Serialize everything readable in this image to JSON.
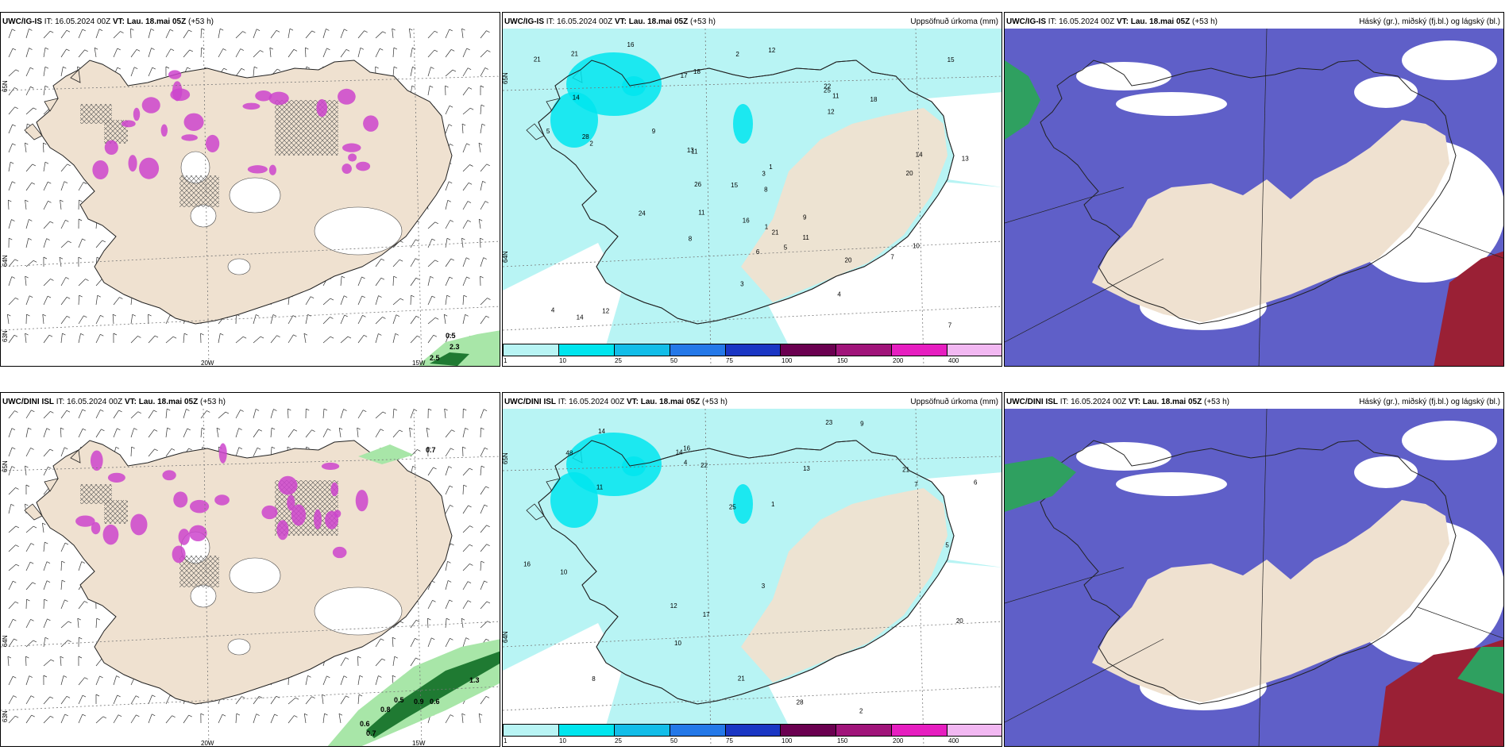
{
  "panels": [
    {
      "id": "igis-wind",
      "model": "UWC/IG-IS",
      "it_label": "IT: 16.05.2024 00Z",
      "vt_label": "VT: Lau. 18.mai 05Z",
      "lead": "(+53 h)",
      "right_title": "",
      "lat_labels": [
        "65N",
        "64N",
        "63N"
      ],
      "lon_labels": [
        "20W",
        "15W"
      ],
      "value_labels": [
        "0.5",
        "2.3",
        "2.5"
      ],
      "colors": {
        "land": "#efe1d0",
        "snow": "#ffffff",
        "precip": "#cc44cc",
        "rain_green": "#3cb043"
      }
    },
    {
      "id": "igis-precip",
      "model": "UWC/IG-IS",
      "it_label": "IT: 16.05.2024 00Z",
      "vt_label": "VT: Lau. 18.mai 05Z",
      "lead": "(+53 h)",
      "right_title": "Uppsöfnuð úrkoma (mm)",
      "lat_labels": [
        "65N",
        "64N"
      ],
      "value_labels": [
        "18",
        "15",
        "18",
        "16",
        "11",
        "21",
        "13",
        "11",
        "7",
        "16",
        "20",
        "14",
        "15",
        "5",
        "12",
        "21",
        "26",
        "4",
        "14",
        "28",
        "24",
        "12",
        "22",
        "20",
        "11",
        "9",
        "8",
        "11",
        "17",
        "5",
        "4",
        "12",
        "25",
        "14",
        "21",
        "13",
        "2",
        "3",
        "7",
        "6",
        "9",
        "8",
        "1",
        "10",
        "2",
        "1",
        "3"
      ],
      "legend_colors": [
        "#b8f4f4",
        "#00e5ee",
        "#12bde8",
        "#2478e8",
        "#1a36c4",
        "#6a0050",
        "#a0147a",
        "#e61ec0",
        "#f2b8f2"
      ],
      "legend_labels": [
        "1",
        "10",
        "25",
        "50",
        "75",
        "100",
        "150",
        "200",
        "400"
      ]
    },
    {
      "id": "igis-cloud",
      "model": "UWC/IG-IS",
      "it_label": "IT: 16.05.2024 00Z",
      "vt_label": "VT: Lau. 18.mai 05Z",
      "lead": "(+53 h)",
      "right_title": "Háský (gr.), miðský (fj.bl.) og lágský (bl.)",
      "colors": {
        "low": "#5f5fc8",
        "mid": "#3a7ad8",
        "high": "#2fa060",
        "deep": "#9a2035"
      }
    },
    {
      "id": "dini-wind",
      "model": "UWC/DINI ISL",
      "it_label": "IT: 16.05.2024 00Z",
      "vt_label": "VT: Lau. 18.mai 05Z",
      "lead": "(+53 h)",
      "right_title": "",
      "lat_labels": [
        "65N",
        "64N",
        "63N"
      ],
      "lon_labels": [
        "20W",
        "15W"
      ],
      "value_labels": [
        "0.7",
        "0.9",
        "0.6",
        "0.5",
        "0.8",
        "0.6",
        "0.7",
        "1.3"
      ]
    },
    {
      "id": "dini-precip",
      "model": "UWC/DINI ISL",
      "it_label": "IT: 16.05.2024 00Z",
      "vt_label": "VT: Lau. 18.mai 05Z",
      "lead": "(+53 h)",
      "right_title": "Uppsöfnuð úrkoma (mm)",
      "lat_labels": [
        "65N",
        "64N"
      ],
      "value_labels": [
        "48",
        "20",
        "21",
        "16",
        "10",
        "14",
        "28",
        "23",
        "22",
        "14",
        "16",
        "12",
        "17",
        "25",
        "21",
        "13",
        "10",
        "11",
        "8",
        "6",
        "9",
        "4",
        "2",
        "3",
        "1",
        "5",
        "7"
      ],
      "legend_colors": [
        "#b8f4f4",
        "#00e5ee",
        "#12bde8",
        "#2478e8",
        "#1a36c4",
        "#6a0050",
        "#a0147a",
        "#e61ec0",
        "#f2b8f2"
      ],
      "legend_labels": [
        "1",
        "10",
        "25",
        "50",
        "75",
        "100",
        "150",
        "200",
        "400"
      ]
    },
    {
      "id": "dini-cloud",
      "model": "UWC/DINI ISL",
      "it_label": "IT: 16.05.2024 00Z",
      "vt_label": "VT: Lau. 18.mai 05Z",
      "lead": "(+53 h)",
      "right_title": "Háský (gr.), miðský (fj.bl.) og lágský (bl.)"
    }
  ]
}
